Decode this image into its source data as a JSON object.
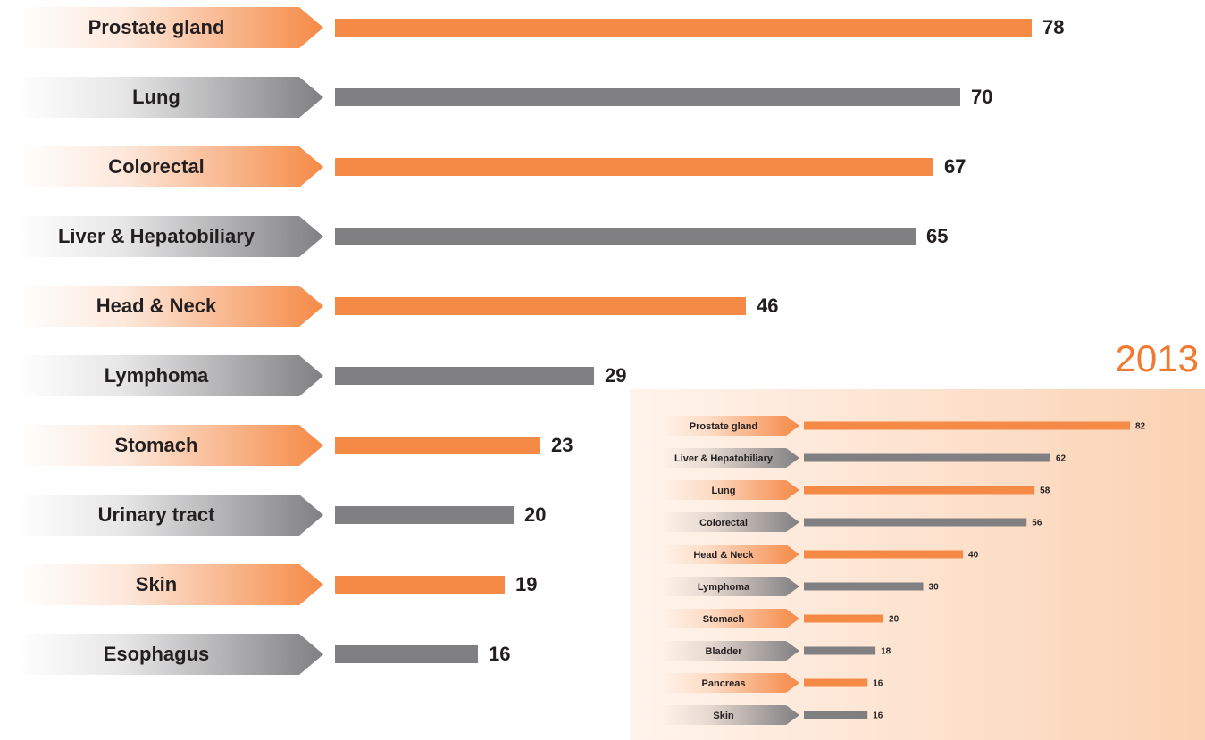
{
  "chart_data": [
    {
      "type": "bar",
      "categories": [
        "Prostate gland",
        "Lung",
        "Colorectal",
        "Liver & Hepatobiliary",
        "Head & Neck",
        "Lymphoma",
        "Stomach",
        "Urinary tract",
        "Skin",
        "Esophagus"
      ],
      "values": [
        78,
        70,
        67,
        65,
        46,
        29,
        23,
        20,
        19,
        16
      ],
      "colors": [
        "#f58a47",
        "#808083",
        "#f58a47",
        "#808083",
        "#f58a47",
        "#808083",
        "#f58a47",
        "#808083",
        "#f58a47",
        "#808083"
      ]
    },
    {
      "type": "bar",
      "title": "2013",
      "categories": [
        "Prostate gland",
        "Liver & Hepatobiliary",
        "Lung",
        "Colorectal",
        "Head & Neck",
        "Lymphoma",
        "Stomach",
        "Bladder",
        "Pancreas",
        "Skin"
      ],
      "values": [
        82,
        62,
        58,
        56,
        40,
        30,
        20,
        18,
        16,
        16
      ],
      "colors": [
        "#f58a47",
        "#808083",
        "#f58a47",
        "#808083",
        "#f58a47",
        "#808083",
        "#f58a47",
        "#808083",
        "#f58a47",
        "#808083"
      ]
    }
  ]
}
